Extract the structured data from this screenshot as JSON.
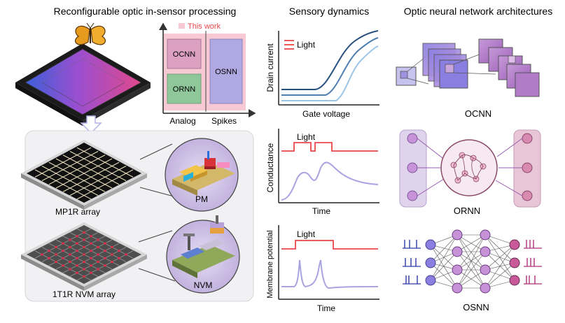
{
  "headings": {
    "left": "Reconfigurable optic in-sensor processing",
    "middle": "Sensory dynamics",
    "right": "Optic neural network architectures"
  },
  "quadrant": {
    "legend": "This work",
    "boxes": [
      "OCNN",
      "ORNN",
      "OSNN"
    ],
    "x_labels": [
      "Analog",
      "Spikes"
    ]
  },
  "arrays": {
    "mp1r_label": "MP1R array",
    "nvm_label": "1T1R NVM array",
    "pm_label": "PM",
    "nvm_device_label": "NVM"
  },
  "dynamics": {
    "plot1": {
      "ylabel": "Drain current",
      "xlabel": "Gate voltage",
      "legend": "Light"
    },
    "plot2": {
      "ylabel": "Conductance",
      "xlabel": "Time",
      "stimulus": "Light"
    },
    "plot3": {
      "ylabel": "Membrane potential",
      "xlabel": "Time",
      "stimulus": "Light"
    }
  },
  "architectures": {
    "ocnn": "OCNN",
    "ornn": "ORNN",
    "osnn": "OSNN"
  },
  "colors": {
    "red": "#e8474b",
    "lavender": "#a9a4e0",
    "navy": "#28507e",
    "purple_fill": "#d6b7e6",
    "pink_fill": "#dca6c7",
    "green_fill": "#8fc79a",
    "panel_bg": "#f1f1f3"
  }
}
